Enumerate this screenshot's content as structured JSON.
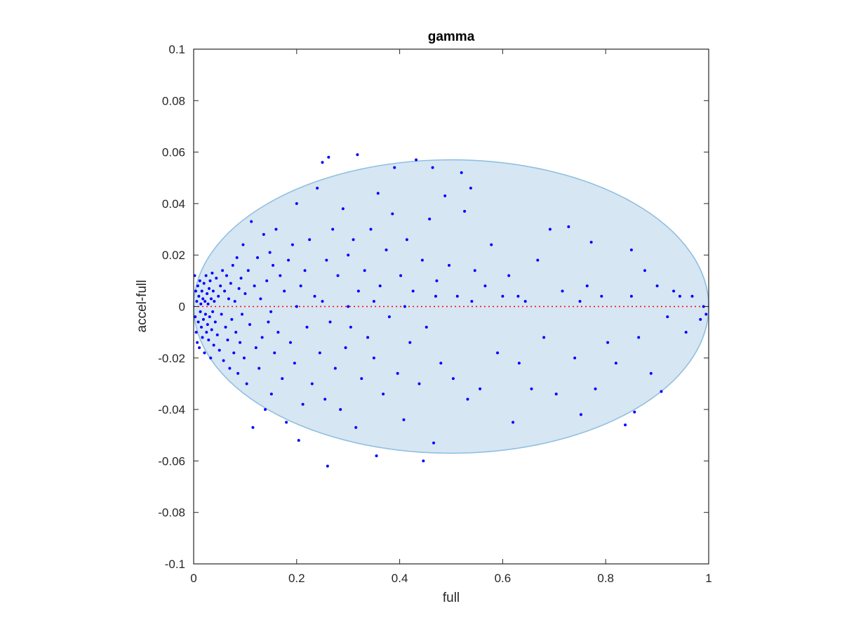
{
  "chart_data": {
    "type": "scatter",
    "title": "gamma",
    "xlabel": "full",
    "ylabel": "accel-full",
    "xlim": [
      0,
      1
    ],
    "ylim": [
      -0.1,
      0.1
    ],
    "xticks": [
      "0",
      "0.2",
      "0.4",
      "0.6",
      "0.8",
      "1"
    ],
    "xtick_values": [
      0,
      0.2,
      0.4,
      0.6,
      0.8,
      1
    ],
    "yticks": [
      "0.1",
      "0.08",
      "0.06",
      "0.04",
      "0.02",
      "0",
      "-0.02",
      "-0.04",
      "-0.06",
      "-0.08",
      "-0.1"
    ],
    "ytick_values": [
      0.1,
      0.08,
      0.06,
      0.04,
      0.02,
      0,
      -0.02,
      -0.04,
      -0.06,
      -0.08,
      -0.1
    ],
    "grid": false,
    "reference_line": {
      "y": 0,
      "style": "dotted",
      "color": "#ff0000"
    },
    "ellipse": {
      "center": [
        0.5,
        0
      ],
      "semi_axis_x": 0.5,
      "semi_axis_y": 0.057,
      "fill_color": "#d6e6f3",
      "edge_color": "#8fbfe0"
    },
    "marker_color": "#0000ff",
    "points": [
      [
        0.002,
        0.012
      ],
      [
        0.003,
        -0.004
      ],
      [
        0.004,
        0.006
      ],
      [
        0.005,
        -0.01
      ],
      [
        0.006,
        0.002
      ],
      [
        0.007,
        -0.014
      ],
      [
        0.008,
        0.008
      ],
      [
        0.009,
        -0.006
      ],
      [
        0.01,
        0.004
      ],
      [
        0.011,
        -0.016
      ],
      [
        0.012,
        0.01
      ],
      [
        0.013,
        -0.002
      ],
      [
        0.014,
        0.001
      ],
      [
        0.015,
        -0.008
      ],
      [
        0.016,
        0.006
      ],
      [
        0.017,
        -0.012
      ],
      [
        0.018,
        0.003
      ],
      [
        0.019,
        -0.005
      ],
      [
        0.02,
        0.009
      ],
      [
        0.021,
        -0.018
      ],
      [
        0.022,
        0.002
      ],
      [
        0.023,
        -0.003
      ],
      [
        0.024,
        0.012
      ],
      [
        0.025,
        -0.01
      ],
      [
        0.026,
        0.005
      ],
      [
        0.027,
        -0.007
      ],
      [
        0.028,
        0.001
      ],
      [
        0.029,
        -0.013
      ],
      [
        0.03,
        0.007
      ],
      [
        0.031,
        -0.004
      ],
      [
        0.032,
        0.01
      ],
      [
        0.033,
        -0.02
      ],
      [
        0.034,
        0.003
      ],
      [
        0.035,
        -0.009
      ],
      [
        0.036,
        0.013
      ],
      [
        0.037,
        -0.002
      ],
      [
        0.038,
        0.006
      ],
      [
        0.039,
        -0.015
      ],
      [
        0.04,
        0.002
      ],
      [
        0.042,
        -0.006
      ],
      [
        0.044,
        0.011
      ],
      [
        0.046,
        -0.011
      ],
      [
        0.048,
        0.004
      ],
      [
        0.05,
        -0.017
      ],
      [
        0.052,
        0.008
      ],
      [
        0.054,
        -0.003
      ],
      [
        0.056,
        0.014
      ],
      [
        0.058,
        -0.021
      ],
      [
        0.06,
        0.006
      ],
      [
        0.062,
        -0.008
      ],
      [
        0.064,
        0.012
      ],
      [
        0.066,
        -0.013
      ],
      [
        0.068,
        0.003
      ],
      [
        0.07,
        -0.024
      ],
      [
        0.072,
        0.009
      ],
      [
        0.074,
        -0.005
      ],
      [
        0.076,
        0.016
      ],
      [
        0.078,
        -0.018
      ],
      [
        0.08,
        0.002
      ],
      [
        0.082,
        -0.01
      ],
      [
        0.084,
        0.019
      ],
      [
        0.086,
        -0.026
      ],
      [
        0.088,
        0.007
      ],
      [
        0.09,
        -0.014
      ],
      [
        0.092,
        0.011
      ],
      [
        0.094,
        -0.003
      ],
      [
        0.096,
        0.024
      ],
      [
        0.098,
        -0.02
      ],
      [
        0.1,
        0.005
      ],
      [
        0.103,
        -0.03
      ],
      [
        0.106,
        0.014
      ],
      [
        0.109,
        -0.007
      ],
      [
        0.112,
        0.033
      ],
      [
        0.115,
        -0.047
      ],
      [
        0.118,
        0.008
      ],
      [
        0.121,
        -0.016
      ],
      [
        0.124,
        0.019
      ],
      [
        0.127,
        -0.024
      ],
      [
        0.13,
        0.003
      ],
      [
        0.133,
        -0.012
      ],
      [
        0.136,
        0.028
      ],
      [
        0.139,
        -0.04
      ],
      [
        0.142,
        0.01
      ],
      [
        0.145,
        -0.006
      ],
      [
        0.148,
        0.021
      ],
      [
        0.151,
        -0.034
      ],
      [
        0.154,
        0.016
      ],
      [
        0.157,
        -0.018
      ],
      [
        0.16,
        0.03
      ],
      [
        0.164,
        -0.01
      ],
      [
        0.168,
        0.012
      ],
      [
        0.172,
        -0.028
      ],
      [
        0.176,
        0.006
      ],
      [
        0.18,
        -0.045
      ],
      [
        0.184,
        0.018
      ],
      [
        0.188,
        -0.014
      ],
      [
        0.192,
        0.024
      ],
      [
        0.196,
        -0.022
      ],
      [
        0.2,
        0.04
      ],
      [
        0.204,
        -0.052
      ],
      [
        0.208,
        0.008
      ],
      [
        0.212,
        -0.038
      ],
      [
        0.216,
        0.014
      ],
      [
        0.22,
        -0.008
      ],
      [
        0.225,
        0.026
      ],
      [
        0.23,
        -0.03
      ],
      [
        0.235,
        0.004
      ],
      [
        0.24,
        0.046
      ],
      [
        0.245,
        -0.018
      ],
      [
        0.25,
        0.056
      ],
      [
        0.255,
        -0.036
      ],
      [
        0.258,
        0.018
      ],
      [
        0.26,
        -0.062
      ],
      [
        0.262,
        0.058
      ],
      [
        0.265,
        -0.006
      ],
      [
        0.27,
        0.03
      ],
      [
        0.275,
        -0.024
      ],
      [
        0.28,
        0.012
      ],
      [
        0.285,
        -0.04
      ],
      [
        0.29,
        0.038
      ],
      [
        0.295,
        -0.016
      ],
      [
        0.3,
        0.02
      ],
      [
        0.305,
        -0.008
      ],
      [
        0.31,
        0.026
      ],
      [
        0.315,
        -0.047
      ],
      [
        0.318,
        0.059
      ],
      [
        0.32,
        0.006
      ],
      [
        0.326,
        -0.028
      ],
      [
        0.332,
        0.014
      ],
      [
        0.338,
        -0.012
      ],
      [
        0.344,
        0.03
      ],
      [
        0.35,
        -0.02
      ],
      [
        0.355,
        -0.058
      ],
      [
        0.358,
        0.044
      ],
      [
        0.362,
        0.008
      ],
      [
        0.368,
        -0.034
      ],
      [
        0.374,
        0.022
      ],
      [
        0.38,
        -0.004
      ],
      [
        0.386,
        0.036
      ],
      [
        0.39,
        0.054
      ],
      [
        0.396,
        -0.026
      ],
      [
        0.402,
        0.012
      ],
      [
        0.408,
        -0.044
      ],
      [
        0.414,
        0.026
      ],
      [
        0.42,
        -0.014
      ],
      [
        0.426,
        0.006
      ],
      [
        0.432,
        0.057
      ],
      [
        0.438,
        -0.03
      ],
      [
        0.444,
        0.018
      ],
      [
        0.446,
        -0.06
      ],
      [
        0.452,
        -0.008
      ],
      [
        0.458,
        0.034
      ],
      [
        0.464,
        0.054
      ],
      [
        0.466,
        -0.053
      ],
      [
        0.472,
        0.01
      ],
      [
        0.48,
        -0.022
      ],
      [
        0.488,
        0.043
      ],
      [
        0.496,
        0.016
      ],
      [
        0.504,
        -0.028
      ],
      [
        0.512,
        0.004
      ],
      [
        0.52,
        0.052
      ],
      [
        0.526,
        0.037
      ],
      [
        0.532,
        -0.036
      ],
      [
        0.538,
        0.046
      ],
      [
        0.546,
        0.014
      ],
      [
        0.556,
        -0.032
      ],
      [
        0.566,
        0.008
      ],
      [
        0.578,
        0.024
      ],
      [
        0.59,
        -0.018
      ],
      [
        0.6,
        0.004
      ],
      [
        0.612,
        0.012
      ],
      [
        0.62,
        -0.045
      ],
      [
        0.632,
        -0.022
      ],
      [
        0.644,
        0.002
      ],
      [
        0.656,
        -0.032
      ],
      [
        0.668,
        0.018
      ],
      [
        0.68,
        -0.012
      ],
      [
        0.692,
        0.03
      ],
      [
        0.704,
        -0.034
      ],
      [
        0.716,
        0.006
      ],
      [
        0.728,
        0.031
      ],
      [
        0.74,
        -0.02
      ],
      [
        0.752,
        -0.042
      ],
      [
        0.764,
        0.008
      ],
      [
        0.772,
        0.025
      ],
      [
        0.78,
        -0.032
      ],
      [
        0.792,
        0.004
      ],
      [
        0.804,
        -0.014
      ],
      [
        0.82,
        -0.022
      ],
      [
        0.838,
        -0.046
      ],
      [
        0.85,
        0.022
      ],
      [
        0.856,
        -0.041
      ],
      [
        0.864,
        -0.012
      ],
      [
        0.876,
        0.014
      ],
      [
        0.888,
        -0.026
      ],
      [
        0.9,
        0.008
      ],
      [
        0.908,
        -0.033
      ],
      [
        0.92,
        -0.004
      ],
      [
        0.932,
        0.006
      ],
      [
        0.944,
        0.004
      ],
      [
        0.956,
        -0.01
      ],
      [
        0.968,
        0.004
      ],
      [
        0.984,
        -0.005
      ],
      [
        0.995,
        -0.003
      ],
      [
        0.99,
        0.0
      ],
      [
        0.85,
        0.004
      ],
      [
        0.75,
        0.002
      ],
      [
        0.63,
        0.004
      ],
      [
        0.54,
        0.002
      ],
      [
        0.47,
        0.004
      ],
      [
        0.41,
        0.0
      ],
      [
        0.35,
        0.002
      ],
      [
        0.3,
        0.0
      ],
      [
        0.25,
        0.002
      ],
      [
        0.2,
        0.0
      ],
      [
        0.15,
        -0.002
      ]
    ]
  }
}
